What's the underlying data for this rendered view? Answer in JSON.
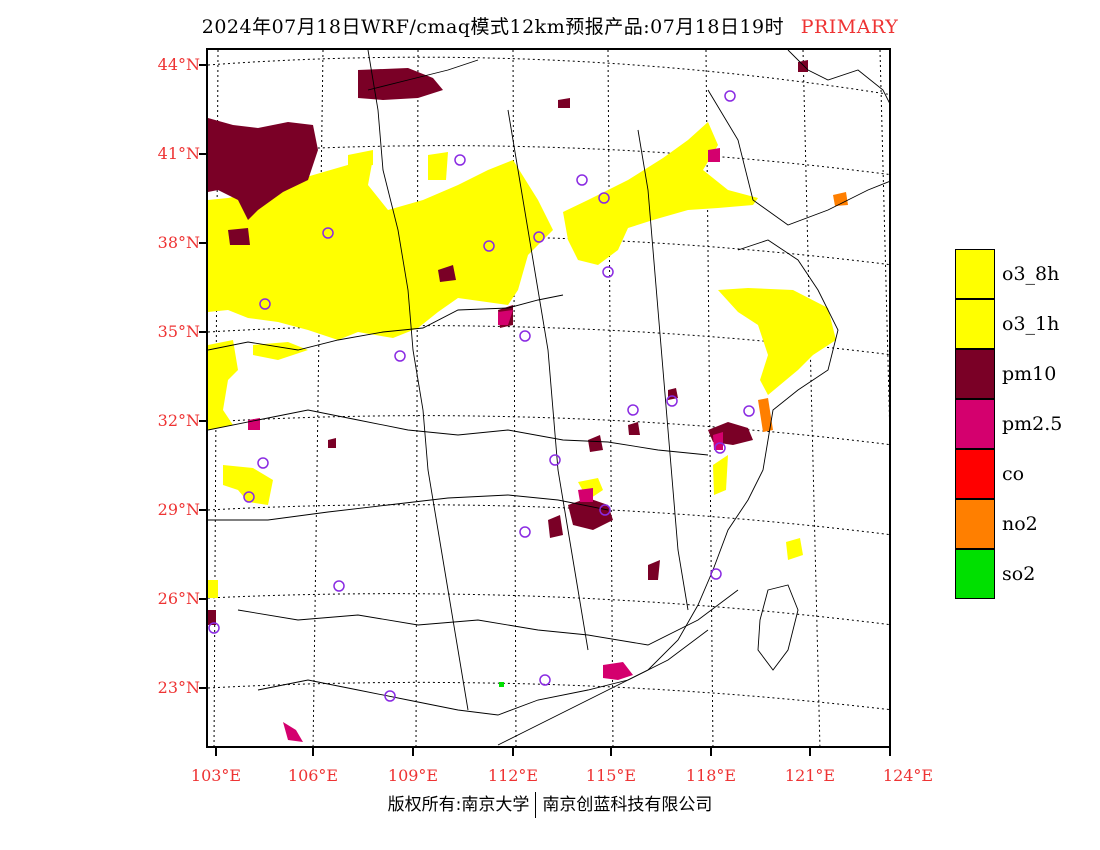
{
  "title": {
    "text": "2024年07月18日WRF/cmaq模式12km预报产品:07月18日19时",
    "tag": "PRIMARY"
  },
  "axes": {
    "lat_labels": [
      "44°N",
      "41°N",
      "38°N",
      "35°N",
      "32°N",
      "29°N",
      "26°N",
      "23°N"
    ],
    "lon_labels": [
      "103°E",
      "106°E",
      "109°E",
      "112°E",
      "115°E",
      "118°E",
      "121°E",
      "124°E"
    ]
  },
  "legend": {
    "items": [
      {
        "label": "o3_8h",
        "color": "#ffff00"
      },
      {
        "label": "o3_1h",
        "color": "#ffff00"
      },
      {
        "label": "pm10",
        "color": "#7a0026"
      },
      {
        "label": "pm2.5",
        "color": "#d4006e"
      },
      {
        "label": "co",
        "color": "#ff0000"
      },
      {
        "label": "no2",
        "color": "#ff7f00"
      },
      {
        "label": "so2",
        "color": "#00e000"
      }
    ]
  },
  "footer": {
    "left": "版权所有:南京大学",
    "right": "南京创蓝科技有限公司"
  },
  "colors": {
    "o3": "#ffff00",
    "pm10": "#7a0026",
    "pm25": "#d4006e",
    "no2": "#ff7f00",
    "so2": "#00e000",
    "station": "#8a2be2",
    "axis_label": "#e33333"
  }
}
